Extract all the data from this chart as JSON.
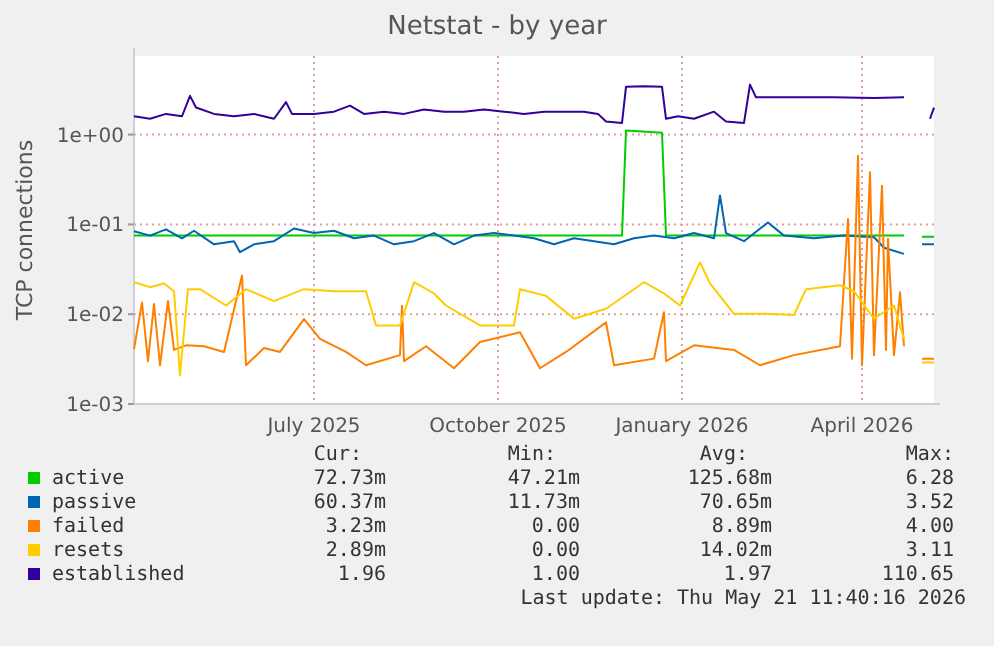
{
  "chart_data": {
    "type": "line",
    "title": "Netstat - by year",
    "ylabel": "TCP connections",
    "log": true,
    "grid": true,
    "legend": "bottom",
    "marker": "none",
    "line_style": "solid",
    "xlim": [
      "2025-04-16",
      "2026-05-21"
    ],
    "xticks": [
      {
        "value": "2025-07-15",
        "label": "July 2025"
      },
      {
        "value": "2025-10-15",
        "label": "October 2025"
      },
      {
        "value": "2026-01-15",
        "label": "January 2026"
      },
      {
        "value": "2026-04-15",
        "label": "April 2026"
      }
    ],
    "ylim": [
      0.001,
      7.5
    ],
    "yticks": [
      {
        "value": 0.001,
        "label": "1e-03"
      },
      {
        "value": 0.01,
        "label": "1e-02"
      },
      {
        "value": 0.1,
        "label": "1e-01"
      },
      {
        "value": 1,
        "label": "1e+00"
      }
    ],
    "series": [
      {
        "name": "active",
        "color": "#00cc00",
        "x": [
          "2025-04-16",
          "2025-12-16",
          "2025-12-18",
          "2026-01-05",
          "2026-01-07",
          "2026-05-06",
          "2026-05-11",
          "2026-05-15",
          "2026-05-21"
        ],
        "values": [
          0.075,
          0.075,
          1.11,
          1.05,
          0.075,
          0.075,
          null,
          0.073,
          0.073
        ]
      },
      {
        "name": "passive",
        "color": "#0066b3",
        "x": [
          "2025-04-16",
          "2025-04-24",
          "2025-05-02",
          "2025-05-10",
          "2025-05-16",
          "2025-05-26",
          "2025-06-05",
          "2025-06-08",
          "2025-06-15",
          "2025-06-25",
          "2025-07-05",
          "2025-07-15",
          "2025-07-25",
          "2025-08-04",
          "2025-08-14",
          "2025-08-24",
          "2025-09-03",
          "2025-09-13",
          "2025-09-23",
          "2025-10-03",
          "2025-10-13",
          "2025-10-23",
          "2025-11-02",
          "2025-11-12",
          "2025-11-22",
          "2025-12-02",
          "2025-12-12",
          "2025-12-22",
          "2026-01-01",
          "2026-01-11",
          "2026-01-21",
          "2026-01-31",
          "2026-02-03",
          "2026-02-06",
          "2026-02-15",
          "2026-02-27",
          "2026-03-07",
          "2026-03-22",
          "2026-04-06",
          "2026-04-21",
          "2026-04-26",
          "2026-05-06",
          "2026-05-11",
          "2026-05-15",
          "2026-05-21"
        ],
        "values": [
          0.084,
          0.075,
          0.088,
          0.07,
          0.085,
          0.06,
          0.065,
          0.049,
          0.06,
          0.065,
          0.09,
          0.08,
          0.085,
          0.07,
          0.075,
          0.06,
          0.065,
          0.08,
          0.06,
          0.075,
          0.08,
          0.075,
          0.07,
          0.06,
          0.07,
          0.065,
          0.06,
          0.07,
          0.075,
          0.07,
          0.08,
          0.07,
          0.21,
          0.08,
          0.065,
          0.105,
          0.075,
          0.07,
          0.075,
          0.072,
          0.055,
          0.047,
          null,
          0.06,
          0.06
        ]
      },
      {
        "name": "failed",
        "color": "#ff8000",
        "x": [
          "2025-04-16",
          "2025-04-20",
          "2025-04-23",
          "2025-04-26",
          "2025-04-29",
          "2025-05-03",
          "2025-05-06",
          "2025-05-12",
          "2025-05-21",
          "2025-05-31",
          "2025-06-09",
          "2025-06-11",
          "2025-06-20",
          "2025-06-28",
          "2025-07-10",
          "2025-07-18",
          "2025-07-31",
          "2025-08-10",
          "2025-08-27",
          "2025-08-28",
          "2025-08-29",
          "2025-09-09",
          "2025-09-23",
          "2025-10-06",
          "2025-10-26",
          "2025-11-05",
          "2025-11-18",
          "2025-12-08",
          "2025-12-12",
          "2026-01-01",
          "2026-01-06",
          "2026-01-07",
          "2026-01-21",
          "2026-02-10",
          "2026-02-23",
          "2026-03-12",
          "2026-04-04",
          "2026-04-08",
          "2026-04-10",
          "2026-04-13",
          "2026-04-15",
          "2026-04-19",
          "2026-04-21",
          "2026-04-25",
          "2026-04-27",
          "2026-04-28",
          "2026-05-01",
          "2026-05-04",
          "2026-05-06",
          "2026-05-11",
          "2026-05-15",
          "2026-05-21"
        ],
        "values": [
          0.0041,
          0.0135,
          0.003,
          0.013,
          0.0027,
          0.014,
          0.004,
          0.0045,
          0.0044,
          0.0038,
          0.027,
          0.0027,
          0.0042,
          0.0038,
          0.0088,
          0.0053,
          0.0038,
          0.0027,
          0.0035,
          0.0124,
          0.003,
          0.0044,
          0.0025,
          0.0049,
          0.0063,
          0.0025,
          0.0038,
          0.0081,
          0.0027,
          0.0032,
          0.0105,
          0.003,
          0.0045,
          0.004,
          0.0027,
          0.0035,
          0.0044,
          0.115,
          0.0032,
          0.58,
          0.0027,
          0.38,
          0.0035,
          0.27,
          0.004,
          0.069,
          0.0035,
          0.0175,
          0.0044,
          null,
          0.0032,
          0.0032
        ]
      },
      {
        "name": "resets",
        "color": "#ffcc00",
        "x": [
          "2025-04-16",
          "2025-04-24",
          "2025-05-01",
          "2025-05-06",
          "2025-05-09",
          "2025-05-13",
          "2025-05-19",
          "2025-06-01",
          "2025-06-11",
          "2025-06-25",
          "2025-07-10",
          "2025-07-25",
          "2025-08-10",
          "2025-08-15",
          "2025-08-27",
          "2025-09-03",
          "2025-09-13",
          "2025-09-19",
          "2025-10-06",
          "2025-10-23",
          "2025-10-26",
          "2025-11-08",
          "2025-11-22",
          "2025-12-08",
          "2025-12-27",
          "2026-01-06",
          "2026-01-14",
          "2026-01-24",
          "2026-01-29",
          "2026-02-10",
          "2026-02-26",
          "2026-03-12",
          "2026-03-18",
          "2026-04-04",
          "2026-04-11",
          "2026-04-21",
          "2026-05-01",
          "2026-05-06",
          "2026-05-11",
          "2026-05-15",
          "2026-05-21"
        ],
        "values": [
          0.0227,
          0.02,
          0.022,
          0.018,
          0.0021,
          0.019,
          0.019,
          0.0125,
          0.019,
          0.014,
          0.019,
          0.018,
          0.018,
          0.0075,
          0.0075,
          0.0227,
          0.017,
          0.0125,
          0.0075,
          0.0075,
          0.019,
          0.016,
          0.0089,
          0.0115,
          0.0227,
          0.017,
          0.0125,
          0.0377,
          0.022,
          0.0101,
          0.0101,
          0.0098,
          0.019,
          0.021,
          0.018,
          0.0089,
          0.0125,
          0.0053,
          null,
          0.0029,
          0.0029
        ]
      },
      {
        "name": "established",
        "color": "#330099",
        "x": [
          "2025-04-16",
          "2025-04-24",
          "2025-05-02",
          "2025-05-10",
          "2025-05-14",
          "2025-05-17",
          "2025-05-26",
          "2025-06-05",
          "2025-06-15",
          "2025-06-25",
          "2025-07-01",
          "2025-07-04",
          "2025-07-15",
          "2025-07-25",
          "2025-08-02",
          "2025-08-09",
          "2025-08-19",
          "2025-08-29",
          "2025-09-08",
          "2025-09-18",
          "2025-09-28",
          "2025-10-08",
          "2025-10-18",
          "2025-10-28",
          "2025-11-07",
          "2025-11-17",
          "2025-11-27",
          "2025-12-04",
          "2025-12-08",
          "2025-12-16",
          "2025-12-18",
          "2025-12-27",
          "2026-01-05",
          "2026-01-07",
          "2026-01-13",
          "2026-01-21",
          "2026-01-31",
          "2026-02-06",
          "2026-02-15",
          "2026-02-18",
          "2026-02-21",
          "2026-03-12",
          "2026-04-01",
          "2026-04-21",
          "2026-05-06",
          "2026-05-11",
          "2026-05-19",
          "2026-05-21"
        ],
        "values": [
          1.6,
          1.5,
          1.7,
          1.6,
          2.7,
          2.0,
          1.7,
          1.6,
          1.7,
          1.5,
          2.3,
          1.7,
          1.7,
          1.8,
          2.1,
          1.7,
          1.8,
          1.7,
          1.9,
          1.8,
          1.8,
          1.9,
          1.8,
          1.7,
          1.8,
          1.8,
          1.8,
          1.7,
          1.4,
          1.35,
          3.4,
          3.45,
          3.4,
          1.5,
          1.6,
          1.5,
          1.8,
          1.4,
          1.35,
          3.6,
          2.6,
          2.6,
          2.6,
          2.55,
          2.6,
          null,
          1.5,
          2.0
        ]
      }
    ],
    "annotations": [
      "Cur:",
      "Min:",
      "Avg:",
      "Max:",
      "72.73m",
      "47.21m",
      "125.68m",
      "6.28",
      "60.37m",
      "11.73m",
      "70.65m",
      "3.52",
      "3.23m",
      "0.00",
      "8.89m",
      "4.00",
      "2.89m",
      "0.00",
      "14.02m",
      "3.11",
      "1.96",
      "1.00",
      "1.97",
      "110.65",
      "Last update: Thu May 21 11:40:16 2026"
    ]
  }
}
